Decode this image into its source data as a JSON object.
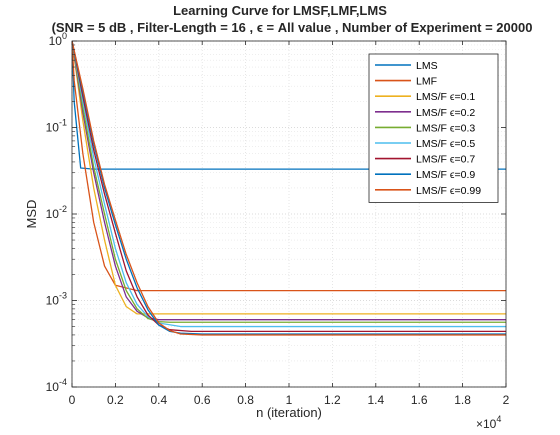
{
  "chart_data": {
    "type": "line",
    "title": "Learning Curve for LMSF,LMF,LMS",
    "subtitle": "(SNR = 5 dB , Filter-Length = 16 , ϵ = All value , Number of Experiment = 20000",
    "xlabel": "n (iteration)",
    "ylabel": "MSD",
    "xlim": [
      0,
      20000
    ],
    "ylim": [
      0.0001,
      1
    ],
    "yscale": "log",
    "x_multiplier_label": "×10",
    "x_multiplier_exp": "4",
    "xticks": [
      0,
      2000,
      4000,
      6000,
      8000,
      10000,
      12000,
      14000,
      16000,
      18000,
      20000
    ],
    "xtick_labels": [
      "0",
      "0.2",
      "0.4",
      "0.6",
      "0.8",
      "1",
      "1.2",
      "1.4",
      "1.6",
      "1.8",
      "2"
    ],
    "ytick_labels": [
      {
        "base": "10",
        "exp": "-4",
        "value": 0.0001
      },
      {
        "base": "10",
        "exp": "-3",
        "value": 0.001
      },
      {
        "base": "10",
        "exp": "-2",
        "value": 0.01
      },
      {
        "base": "10",
        "exp": "-1",
        "value": 0.1
      },
      {
        "base": "10",
        "exp": "0",
        "value": 1
      }
    ],
    "grid": true,
    "legend_position": "top-right",
    "series": [
      {
        "name": "LMS",
        "color": "#0072BD",
        "x": [
          0,
          100,
          400,
          1000,
          5000,
          10000,
          15000,
          20000
        ],
        "y": [
          1.0,
          0.2,
          0.034,
          0.033,
          0.033,
          0.033,
          0.033,
          0.033
        ]
      },
      {
        "name": "LMF",
        "color": "#D95319",
        "x": [
          0,
          100,
          500,
          1000,
          1500,
          2000,
          3000,
          5000,
          10000,
          20000
        ],
        "y": [
          1.0,
          0.35,
          0.05,
          0.008,
          0.0025,
          0.0015,
          0.0013,
          0.0013,
          0.0013,
          0.0013
        ]
      },
      {
        "name": "LMS/F ϵ=0.1",
        "color": "#EDB120",
        "x": [
          0,
          500,
          1000,
          1500,
          2000,
          2500,
          3000,
          4000,
          20000
        ],
        "y": [
          1.0,
          0.12,
          0.02,
          0.005,
          0.0015,
          0.00085,
          0.0007,
          0.0007,
          0.0007
        ]
      },
      {
        "name": "LMS/F ϵ=0.2",
        "color": "#7E2F8E",
        "x": [
          0,
          500,
          1000,
          1500,
          2000,
          2500,
          3000,
          3500,
          4000,
          20000
        ],
        "y": [
          1.0,
          0.15,
          0.03,
          0.008,
          0.0025,
          0.0011,
          0.00075,
          0.00063,
          0.0006,
          0.0006
        ]
      },
      {
        "name": "LMS/F ϵ=0.3",
        "color": "#77AC30",
        "x": [
          0,
          500,
          1000,
          1500,
          2000,
          2500,
          3000,
          3500,
          4000,
          4500,
          20000
        ],
        "y": [
          1.0,
          0.17,
          0.035,
          0.01,
          0.003,
          0.0013,
          0.0008,
          0.00062,
          0.00057,
          0.00056,
          0.00056
        ]
      },
      {
        "name": "LMS/F ϵ=0.5",
        "color": "#4DBEEE",
        "x": [
          0,
          500,
          1000,
          1500,
          2000,
          2500,
          3000,
          3500,
          4000,
          5000,
          20000
        ],
        "y": [
          1.0,
          0.2,
          0.045,
          0.013,
          0.004,
          0.0016,
          0.0009,
          0.00065,
          0.00055,
          0.0005,
          0.0005
        ]
      },
      {
        "name": "LMS/F ϵ=0.7",
        "color": "#A2142F",
        "x": [
          0,
          500,
          1000,
          1500,
          2000,
          2500,
          3000,
          3500,
          4000,
          4500,
          5500,
          20000
        ],
        "y": [
          1.0,
          0.23,
          0.055,
          0.017,
          0.006,
          0.0022,
          0.0011,
          0.00068,
          0.00052,
          0.00046,
          0.00044,
          0.00044
        ]
      },
      {
        "name": "LMS/F ϵ=0.9",
        "color": "#0072BD",
        "x": [
          0,
          500,
          1000,
          1500,
          2000,
          2500,
          3000,
          3500,
          4000,
          4500,
          5000,
          6000,
          20000
        ],
        "y": [
          1.0,
          0.26,
          0.065,
          0.02,
          0.0075,
          0.003,
          0.0014,
          0.00078,
          0.00052,
          0.00044,
          0.00042,
          0.00041,
          0.00041
        ]
      },
      {
        "name": "LMS/F ϵ=0.99",
        "color": "#D95319",
        "x": [
          0,
          500,
          1000,
          1500,
          2000,
          2500,
          3000,
          3500,
          4000,
          4500,
          5000,
          6000,
          20000
        ],
        "y": [
          1.0,
          0.28,
          0.07,
          0.022,
          0.0085,
          0.0034,
          0.0016,
          0.00085,
          0.00055,
          0.00045,
          0.00041,
          0.0004,
          0.0004
        ]
      }
    ]
  }
}
